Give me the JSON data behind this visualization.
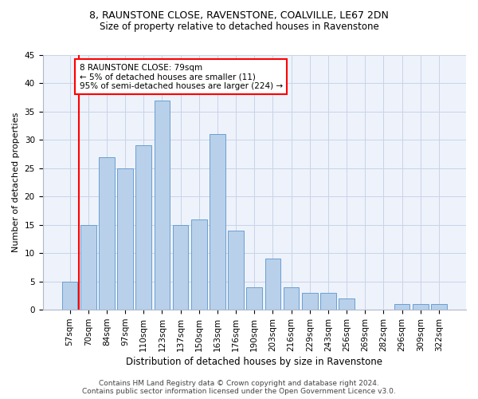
{
  "title1": "8, RAUNSTONE CLOSE, RAVENSTONE, COALVILLE, LE67 2DN",
  "title2": "Size of property relative to detached houses in Ravenstone",
  "xlabel": "Distribution of detached houses by size in Ravenstone",
  "ylabel": "Number of detached properties",
  "categories": [
    "57sqm",
    "70sqm",
    "84sqm",
    "97sqm",
    "110sqm",
    "123sqm",
    "137sqm",
    "150sqm",
    "163sqm",
    "176sqm",
    "190sqm",
    "203sqm",
    "216sqm",
    "229sqm",
    "243sqm",
    "256sqm",
    "269sqm",
    "282sqm",
    "296sqm",
    "309sqm",
    "322sqm"
  ],
  "values": [
    5,
    15,
    27,
    25,
    29,
    37,
    15,
    16,
    31,
    14,
    4,
    9,
    4,
    3,
    3,
    2,
    0,
    0,
    1,
    1,
    1
  ],
  "bar_color": "#b8d0ea",
  "bar_edge_color": "#6a9fd0",
  "vline_x": 0.5,
  "annotation_text": "8 RAUNSTONE CLOSE: 79sqm\n← 5% of detached houses are smaller (11)\n95% of semi-detached houses are larger (224) →",
  "annotation_box_color": "white",
  "annotation_box_edge_color": "red",
  "vline_color": "red",
  "ylim": [
    0,
    45
  ],
  "yticks": [
    0,
    5,
    10,
    15,
    20,
    25,
    30,
    35,
    40,
    45
  ],
  "footer1": "Contains HM Land Registry data © Crown copyright and database right 2024.",
  "footer2": "Contains public sector information licensed under the Open Government Licence v3.0.",
  "bg_color": "#eef2fb",
  "grid_color": "#c8d4e8",
  "title1_fontsize": 9,
  "title2_fontsize": 8.5,
  "ylabel_fontsize": 8,
  "xlabel_fontsize": 8.5,
  "tick_fontsize": 7.5,
  "annot_fontsize": 7.5,
  "footer_fontsize": 6.5
}
